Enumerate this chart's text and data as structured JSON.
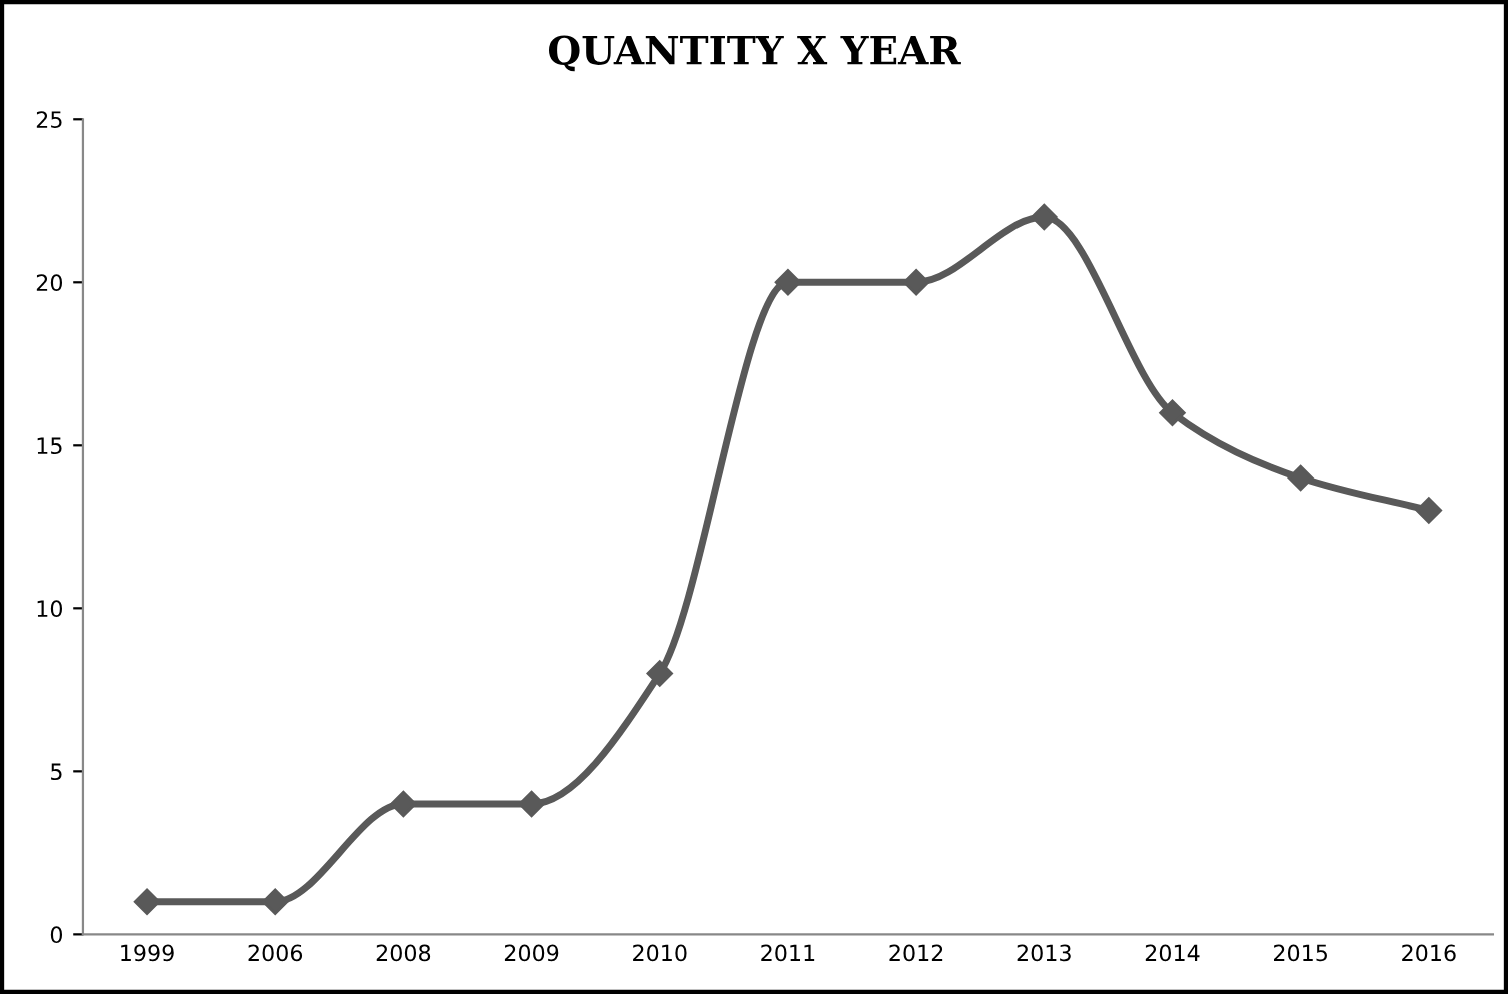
{
  "chart_data": {
    "type": "line",
    "title": "QUANTITY X YEAR",
    "categories": [
      "1999",
      "2006",
      "2008",
      "2009",
      "2010",
      "2011",
      "2012",
      "2013",
      "2014",
      "2015",
      "2016"
    ],
    "series": [
      {
        "color": "#595959",
        "values": [
          1,
          1,
          4,
          4,
          8,
          20,
          20,
          22,
          16,
          14,
          13
        ]
      }
    ],
    "ylim": [
      0,
      25
    ],
    "yticks": [
      0,
      5,
      10,
      15,
      20,
      25
    ],
    "grid": false,
    "legend": false,
    "marker": "diamond",
    "line_style": "solid"
  }
}
